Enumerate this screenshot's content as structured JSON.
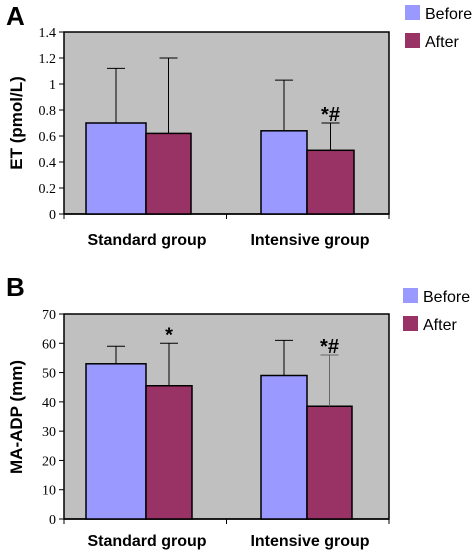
{
  "chart_data": [
    {
      "panel": "A",
      "type": "bar",
      "ylabel": "ET (pmol/L)",
      "categories": [
        "Standard group",
        "Intensive group"
      ],
      "ylim": [
        0,
        1.4
      ],
      "yticks": [
        "0",
        "0.2",
        "0.4",
        "0.6",
        "0.8",
        "1",
        "1.2",
        "1.4"
      ],
      "series": [
        {
          "name": "Before",
          "color": "#9999ff",
          "values": [
            0.7,
            0.64
          ],
          "error": [
            0.42,
            0.39
          ]
        },
        {
          "name": "After",
          "color": "#993366",
          "values": [
            0.62,
            0.49
          ],
          "error": [
            0.58,
            0.21
          ]
        }
      ],
      "annotations": [
        {
          "category": 1,
          "series": 1,
          "text": "*#"
        }
      ],
      "legend": "top-right",
      "background": "#c0c0c0"
    },
    {
      "panel": "B",
      "type": "bar",
      "ylabel": "MA-ADP (mm)",
      "categories": [
        "Standard group",
        "Intensive group"
      ],
      "ylim": [
        0,
        70
      ],
      "yticks": [
        "0",
        "10",
        "20",
        "30",
        "40",
        "50",
        "60",
        "70"
      ],
      "series": [
        {
          "name": "Before",
          "color": "#9999ff",
          "values": [
            53,
            49
          ],
          "error": [
            6,
            12
          ]
        },
        {
          "name": "After",
          "color": "#993366",
          "values": [
            45.5,
            38.5
          ],
          "error": [
            14.5,
            17.5
          ]
        }
      ],
      "annotations": [
        {
          "category": 0,
          "series": 1,
          "text": "*"
        },
        {
          "category": 1,
          "series": 1,
          "text": "*#"
        }
      ],
      "legend": "top-right",
      "background": "#c0c0c0"
    }
  ]
}
